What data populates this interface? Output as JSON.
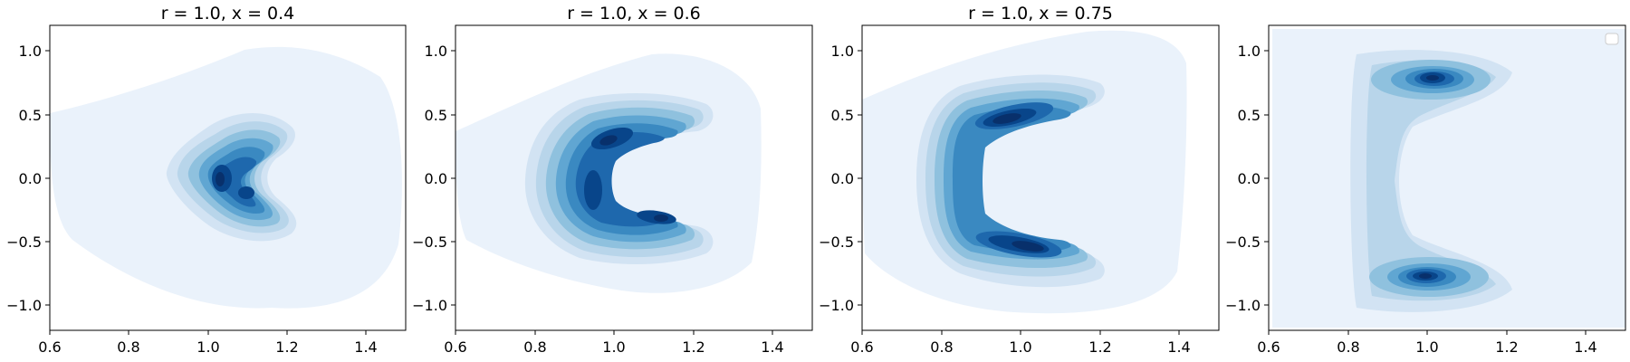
{
  "chart_data": [
    {
      "type": "contour",
      "title": "r = 1.0, x = 0.4",
      "xlim": [
        0.6,
        1.5
      ],
      "ylim": [
        -1.2,
        1.2
      ],
      "xticks": [
        "0.6",
        "0.8",
        "1.0",
        "1.2",
        "1.4"
      ],
      "yticks": [
        "1.0",
        "0.5",
        "0.0",
        "−0.5",
        "−1.0"
      ],
      "colormap": "Blues",
      "legend": false,
      "density_centers": [
        [
          1.03,
          0.0
        ],
        [
          1.07,
          0.25
        ],
        [
          1.13,
          -0.3
        ]
      ],
      "density_shape": "crescent opening right, vertex near x=1.0"
    },
    {
      "type": "contour",
      "title": "r = 1.0, x = 0.6",
      "xlim": [
        0.6,
        1.5
      ],
      "ylim": [
        -1.2,
        1.2
      ],
      "xticks": [
        "0.6",
        "0.8",
        "1.0",
        "1.2",
        "1.4"
      ],
      "yticks": [
        "1.0",
        "0.5",
        "0.0",
        "−0.5",
        "−1.0"
      ],
      "colormap": "Blues",
      "legend": false,
      "density_centers": [
        [
          0.9,
          0.0
        ],
        [
          1.0,
          0.35
        ],
        [
          1.1,
          -0.5
        ]
      ],
      "density_shape": "crescent opening right, vertex near x=0.9"
    },
    {
      "type": "contour",
      "title": "r = 1.0, x = 0.75",
      "xlim": [
        0.6,
        1.5
      ],
      "ylim": [
        -1.2,
        1.2
      ],
      "xticks": [
        "0.6",
        "0.8",
        "1.0",
        "1.2",
        "1.4"
      ],
      "yticks": [
        "1.0",
        "0.5",
        "0.0",
        "−0.5",
        "−1.0"
      ],
      "colormap": "Blues",
      "legend": false,
      "density_centers": [
        [
          0.95,
          0.55
        ],
        [
          1.05,
          0.65
        ],
        [
          0.95,
          -0.55
        ],
        [
          1.08,
          -0.65
        ]
      ],
      "density_shape": "C-shape opening right, vertex near x=0.8"
    },
    {
      "type": "contour",
      "title": "",
      "xlim": [
        0.6,
        1.5
      ],
      "ylim": [
        -1.2,
        1.2
      ],
      "xticks": [
        "0.6",
        "0.8",
        "1.0",
        "1.2",
        "1.4"
      ],
      "yticks": [
        "1.0",
        "0.5",
        "0.0",
        "−0.5",
        "−1.0"
      ],
      "colormap": "Blues",
      "legend": true,
      "legend_placement": "top-right",
      "density_centers": [
        [
          1.03,
          0.78
        ],
        [
          1.0,
          -0.76
        ]
      ],
      "density_shape": "two separated lobes at y≈±0.77 joined by faint band near x=0.9"
    }
  ],
  "colors": {
    "level_1": "#eaf2fb",
    "level_2": "#d2e3f3",
    "level_3": "#b8d5ea",
    "level_4": "#8fc1de",
    "level_5": "#60a6d2",
    "level_6": "#3a89c1",
    "level_7": "#1e68ad",
    "level_8": "#08458a",
    "level_9": "#08306b"
  }
}
